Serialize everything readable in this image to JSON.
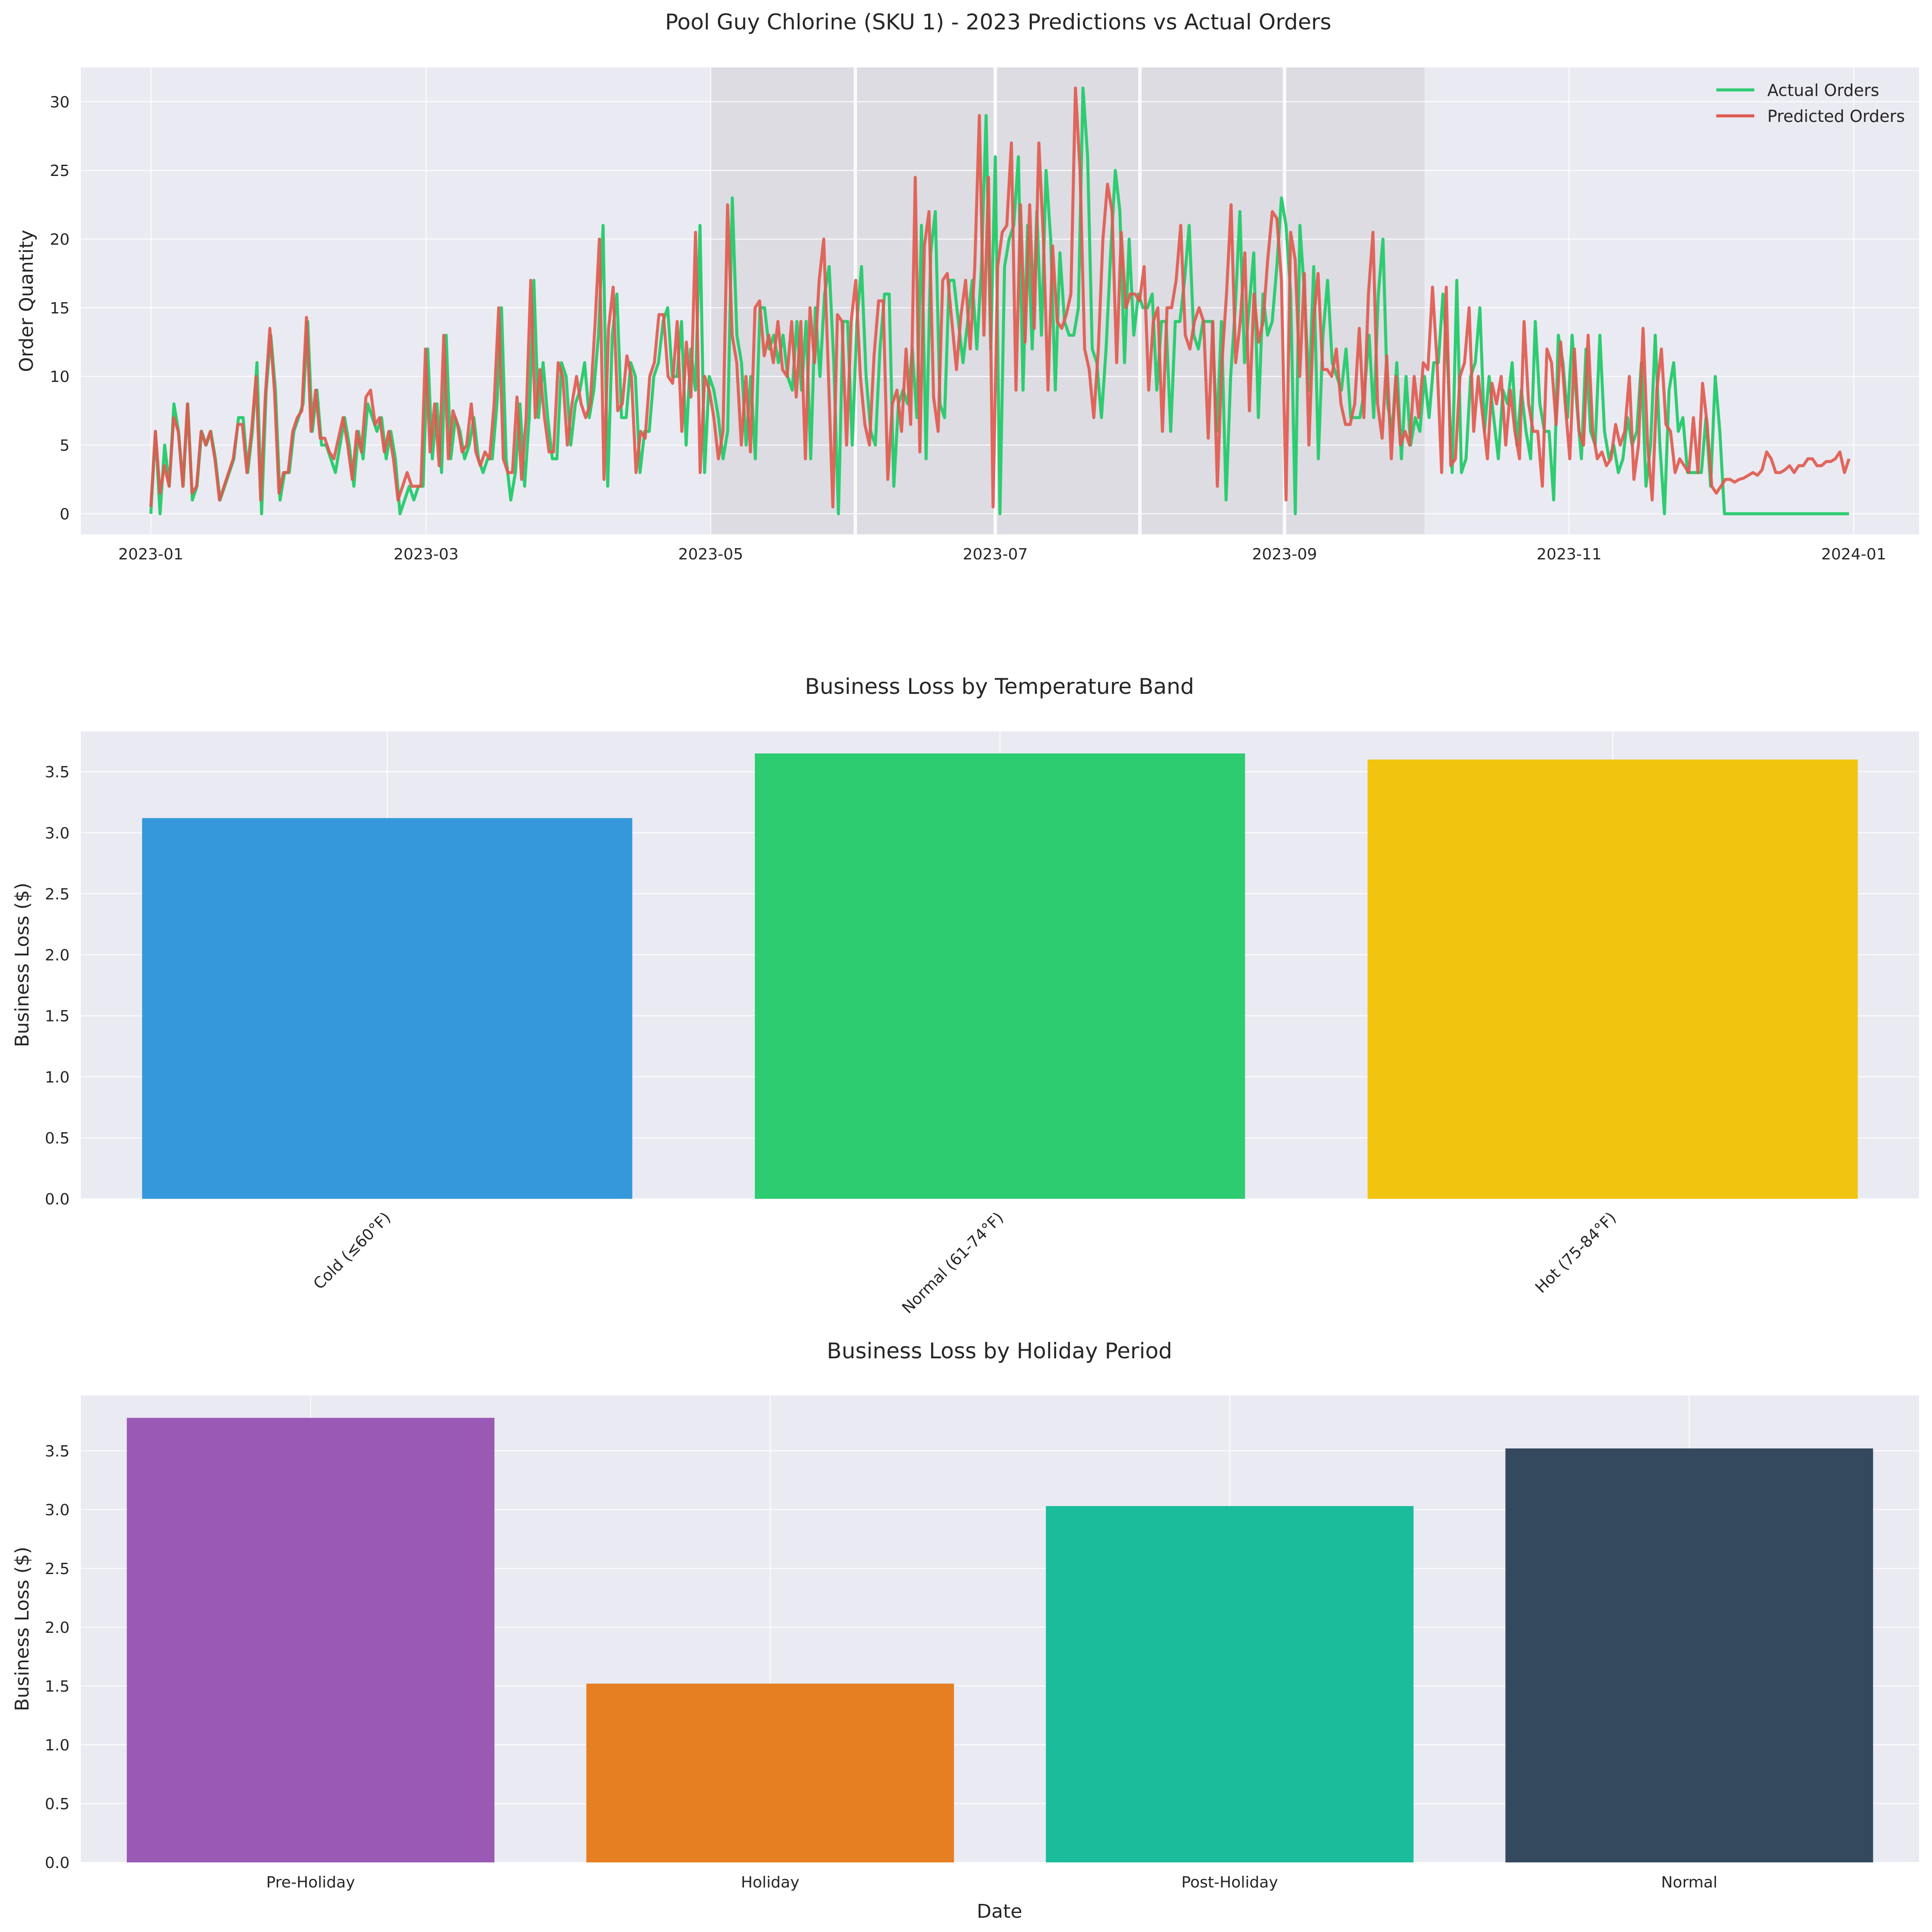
{
  "figure": {
    "background": "#ffffff",
    "plot_background": "#eaeaf2",
    "grid_color": "#ffffff",
    "text_color": "#262626"
  },
  "chart_data": [
    {
      "type": "line",
      "title": "Pool Guy Chlorine (SKU 1) - 2023 Predictions vs Actual Orders",
      "xlabel": "",
      "ylabel": "Order Quantity",
      "x_start": "2023-01-01",
      "x_end": "2023-12-31",
      "x_step": "1 day",
      "xlim": [
        "2022-12-17",
        "2024-01-15"
      ],
      "ylim": [
        -1.5,
        32.5
      ],
      "x_ticks": [
        "2023-01",
        "2023-03",
        "2023-05",
        "2023-07",
        "2023-09",
        "2023-11",
        "2024-01"
      ],
      "y_ticks": [
        0,
        5,
        10,
        15,
        20,
        25,
        30
      ],
      "shaded_periods": [
        [
          "2023-05-01",
          "2023-10-01"
        ]
      ],
      "vertical_lines": [
        "2023-06-01",
        "2023-07-01",
        "2023-08-01",
        "2023-09-01"
      ],
      "legend_position": "upper right",
      "grid": true,
      "series": [
        {
          "name": "Actual Orders",
          "color": "#2ecc71",
          "values": [
            0,
            6,
            0,
            5,
            2,
            8,
            6,
            2,
            8,
            1,
            2,
            6,
            5,
            6,
            4,
            1,
            2,
            3,
            4,
            7,
            7,
            3,
            6,
            11,
            0,
            9,
            13,
            9,
            1,
            3,
            3,
            6,
            7,
            8,
            14,
            6,
            9,
            5,
            5,
            4,
            3,
            5,
            7,
            5,
            2,
            6,
            4,
            8,
            7,
            6,
            7,
            4,
            6,
            4,
            0,
            1,
            2,
            1,
            2,
            2,
            12,
            4,
            8,
            3,
            13,
            4,
            7,
            6,
            4,
            5,
            7,
            4,
            3,
            4,
            4,
            8,
            15,
            4,
            1,
            3,
            8,
            2,
            7,
            17,
            7,
            11,
            7,
            4,
            4,
            11,
            10,
            5,
            8,
            9,
            11,
            7,
            9,
            13,
            21,
            2,
            13,
            16,
            7,
            7,
            11,
            10,
            3,
            6,
            6,
            10,
            11,
            14,
            15,
            10,
            10,
            14,
            5,
            12,
            9,
            21,
            3,
            10,
            9,
            7,
            4,
            6,
            23,
            13,
            11,
            5,
            10,
            4,
            15,
            15,
            12,
            13,
            11,
            13,
            10,
            9,
            14,
            9,
            14,
            4,
            15,
            10,
            16,
            18,
            11,
            0,
            14,
            14,
            5,
            14,
            18,
            10,
            6,
            5,
            12,
            16,
            16,
            2,
            8,
            9,
            8,
            12,
            7,
            21,
            4,
            19,
            22,
            8,
            7,
            17,
            17,
            14,
            11,
            14,
            17,
            12,
            18,
            29,
            12,
            26,
            0,
            18,
            20,
            21,
            26,
            9,
            21,
            12,
            22,
            13,
            25,
            20,
            9,
            19,
            14,
            13,
            13,
            15,
            31,
            26,
            12,
            11,
            7,
            12,
            19,
            25,
            22,
            11,
            20,
            13,
            16,
            15,
            15,
            16,
            9,
            14,
            14,
            6,
            14,
            14,
            17,
            21,
            13,
            12,
            14,
            14,
            14,
            6,
            14,
            1,
            10,
            15,
            22,
            11,
            15,
            19,
            7,
            16,
            13,
            14,
            18,
            23,
            21,
            16,
            0,
            21,
            16,
            9,
            18,
            4,
            13,
            17,
            11,
            10,
            9,
            12,
            7,
            7,
            7,
            9,
            13,
            7,
            16,
            20,
            8,
            6,
            11,
            4,
            10,
            5,
            7,
            6,
            10,
            7,
            11,
            11,
            16,
            11,
            3,
            17,
            3,
            4,
            10,
            11,
            15,
            6,
            10,
            7,
            4,
            9,
            8,
            11,
            5,
            9,
            6,
            4,
            14,
            8,
            6,
            6,
            1,
            13,
            11,
            7,
            13,
            8,
            4,
            12,
            6,
            5,
            13,
            6,
            4,
            5,
            3,
            4,
            7,
            5,
            6,
            11,
            2,
            5,
            13,
            5,
            0,
            9,
            11,
            6,
            7,
            3,
            3,
            3,
            3,
            7,
            2,
            10,
            6,
            0,
            0,
            0,
            0,
            0,
            0,
            0,
            0,
            0,
            0,
            0,
            0,
            0,
            0,
            0,
            0,
            0,
            0,
            0,
            0,
            0,
            0,
            0,
            0,
            0,
            0,
            0,
            0
          ]
        },
        {
          "name": "Predicted Orders",
          "color": "#e05a4f",
          "values": [
            0.5,
            6,
            1.5,
            3.5,
            2,
            7,
            6,
            2,
            8,
            1.5,
            2,
            6,
            5,
            6,
            4,
            1,
            2,
            3,
            4,
            6.5,
            6.5,
            3,
            6,
            10,
            1,
            8.5,
            13.5,
            9,
            1.5,
            3,
            3,
            6,
            7,
            7.5,
            14.3,
            6,
            9,
            5.5,
            5.5,
            4.5,
            4,
            5.5,
            7,
            5,
            2.5,
            6,
            4.5,
            8.5,
            9,
            6.5,
            7,
            4.5,
            6,
            4,
            1,
            2,
            3,
            2,
            2,
            2,
            12,
            4.5,
            8,
            3.5,
            13,
            4,
            7.5,
            6.5,
            4.5,
            5,
            8,
            4.5,
            3.5,
            4.5,
            4,
            8,
            15,
            4,
            3,
            3,
            8.5,
            2.5,
            7,
            17,
            7,
            10.5,
            7,
            4.5,
            4.5,
            11,
            10,
            5,
            8,
            10,
            8,
            7,
            8,
            13.5,
            20,
            2.5,
            13.5,
            16.5,
            7.5,
            8,
            11.5,
            10,
            3,
            6,
            5.5,
            10,
            11,
            14.5,
            14.5,
            10,
            9.5,
            14,
            6,
            12.5,
            8.5,
            20.5,
            3,
            10,
            9,
            7,
            4,
            6,
            22.5,
            13,
            11,
            5,
            10,
            4.5,
            15,
            15.5,
            11.5,
            13,
            11,
            14,
            10.5,
            10,
            14,
            8.5,
            14,
            4,
            15,
            11,
            17,
            20,
            10.5,
            0.5,
            14.5,
            14,
            5,
            14,
            17,
            10,
            6.5,
            5,
            11.5,
            15.5,
            15.5,
            2.5,
            8,
            9,
            6,
            12,
            6.5,
            24.5,
            4.5,
            19.5,
            22,
            8.5,
            6,
            17,
            17.5,
            14,
            10.5,
            14.5,
            17,
            12,
            18,
            29,
            13,
            24.5,
            0.5,
            18,
            20.5,
            21,
            27,
            9,
            22.5,
            12.5,
            22.5,
            13.5,
            27,
            20,
            9,
            19.5,
            14,
            13.5,
            14.5,
            16,
            31,
            25,
            12,
            10.5,
            7,
            12,
            20,
            24,
            22,
            11,
            20.5,
            15,
            16,
            16,
            15.5,
            18,
            9,
            14,
            15,
            6,
            15,
            15,
            17,
            21,
            13,
            12,
            14,
            15,
            14,
            5.5,
            14,
            2,
            11,
            16,
            22.5,
            11,
            14,
            19,
            7.5,
            16,
            12.5,
            14,
            18.5,
            22,
            21.5,
            17,
            1,
            20.5,
            18.5,
            10,
            17.5,
            5,
            14,
            17.5,
            10.5,
            10.5,
            10,
            12,
            8,
            6.5,
            6.5,
            8,
            13.5,
            7,
            16,
            20.5,
            8,
            5.5,
            11.5,
            4,
            10,
            5,
            6,
            5,
            10,
            7,
            11,
            10.5,
            16.5,
            11,
            3,
            16.5,
            3.5,
            4,
            10,
            11,
            15,
            6,
            10,
            7,
            4,
            9.5,
            8,
            10,
            5,
            9,
            6,
            4,
            14,
            8,
            6,
            6,
            2,
            12,
            11,
            6.5,
            12.5,
            8,
            4,
            12,
            6,
            5,
            13,
            6,
            4,
            4.5,
            3.5,
            4,
            6.5,
            5,
            6,
            10,
            2.5,
            5,
            13.5,
            5,
            1,
            9,
            12,
            6.5,
            6,
            3,
            4,
            3.5,
            3,
            7,
            3,
            9.5,
            6.5,
            2,
            1.5,
            2,
            2.5,
            2.5,
            2.3,
            2.5,
            2.6,
            2.8,
            3,
            2.8,
            3.2,
            4.5,
            4,
            3,
            3,
            3.2,
            3.5,
            3,
            3.5,
            3.5,
            4,
            4,
            3.5,
            3.5,
            3.8,
            3.8,
            4,
            4.5,
            3,
            4
          ]
        }
      ]
    },
    {
      "type": "bar",
      "title": "Business Loss by Temperature Band",
      "xlabel": "",
      "ylabel": "Business Loss ($)",
      "categories": [
        "Cold (≤60°F)",
        "Normal (61-74°F)",
        "Hot (75-84°F)"
      ],
      "values": [
        3.12,
        3.65,
        3.6
      ],
      "colors": [
        "#3498db",
        "#2ecc71",
        "#f1c40f"
      ],
      "ylim": [
        0,
        3.83
      ],
      "y_ticks": [
        0.0,
        0.5,
        1.0,
        1.5,
        2.0,
        2.5,
        3.0,
        3.5
      ],
      "tick_label_rotation": 45,
      "grid": true
    },
    {
      "type": "bar",
      "title": "Business Loss by Holiday Period",
      "xlabel": "Date",
      "ylabel": "Business Loss ($)",
      "categories": [
        "Pre-Holiday",
        "Holiday",
        "Post-Holiday",
        "Normal"
      ],
      "values": [
        3.78,
        1.52,
        3.03,
        3.52
      ],
      "colors": [
        "#9b59b6",
        "#e67e22",
        "#1abc9c",
        "#34495e"
      ],
      "ylim": [
        0,
        3.97
      ],
      "y_ticks": [
        0.0,
        0.5,
        1.0,
        1.5,
        2.0,
        2.5,
        3.0,
        3.5
      ],
      "grid": true
    }
  ]
}
